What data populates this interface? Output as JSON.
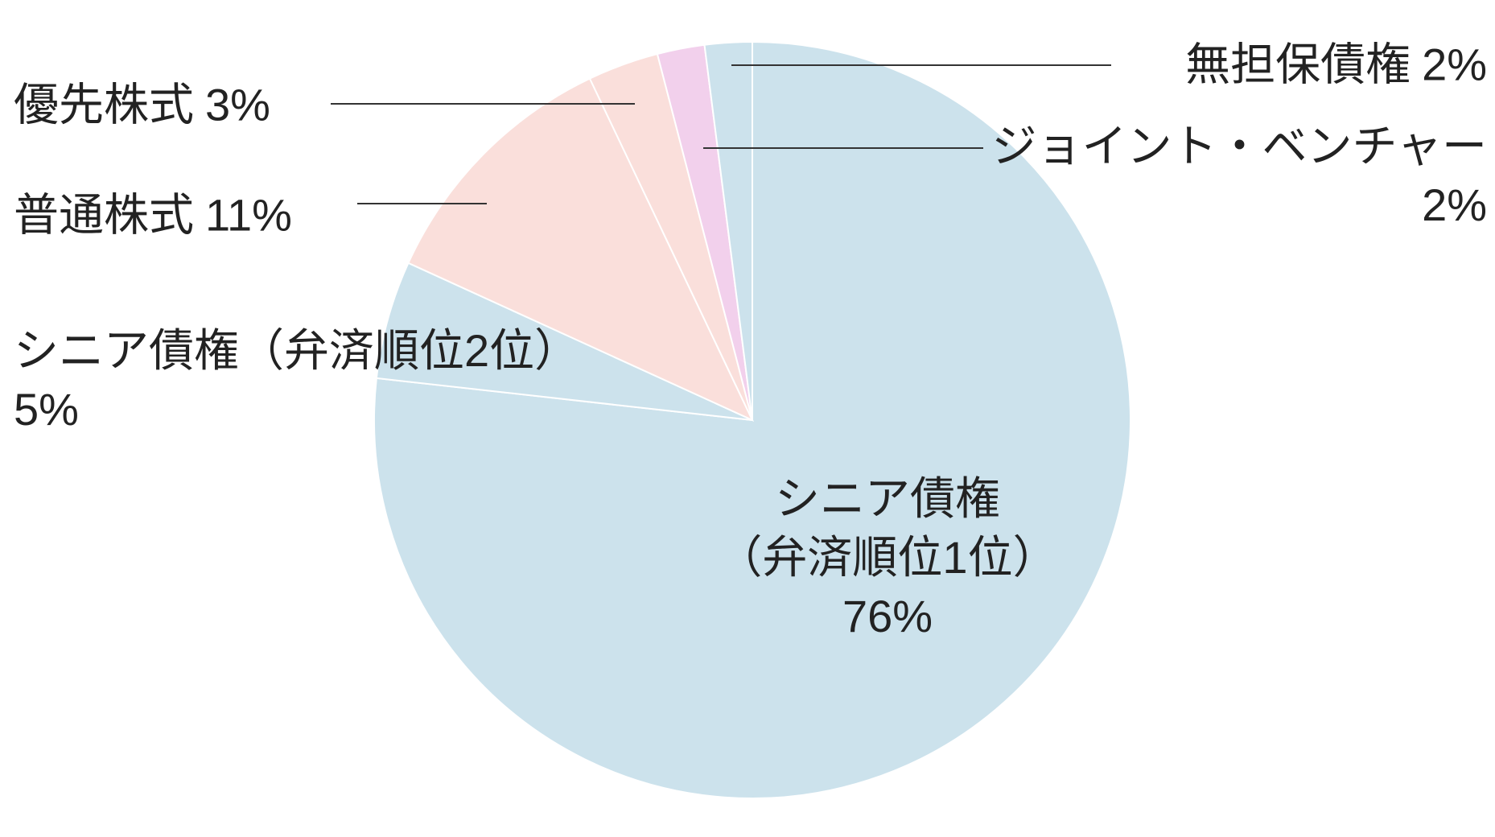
{
  "chart_data": {
    "type": "pie",
    "categories": [
      "シニア債権\n（弁済順位1位）",
      "シニア債権（弁済順位2位）",
      "普通株式",
      "優先株式",
      "ジョイント・ベンチャー",
      "無担保債権"
    ],
    "values": [
      76,
      5,
      11,
      3,
      2,
      2
    ],
    "value_labels": [
      "76%",
      "5%",
      "11%",
      "3%",
      "2%",
      "2%"
    ],
    "colors": [
      "#cce2ec",
      "#cce2ec",
      "#fadfdb",
      "#fadfdb",
      "#f2d0ec",
      "#cce2ec"
    ]
  }
}
